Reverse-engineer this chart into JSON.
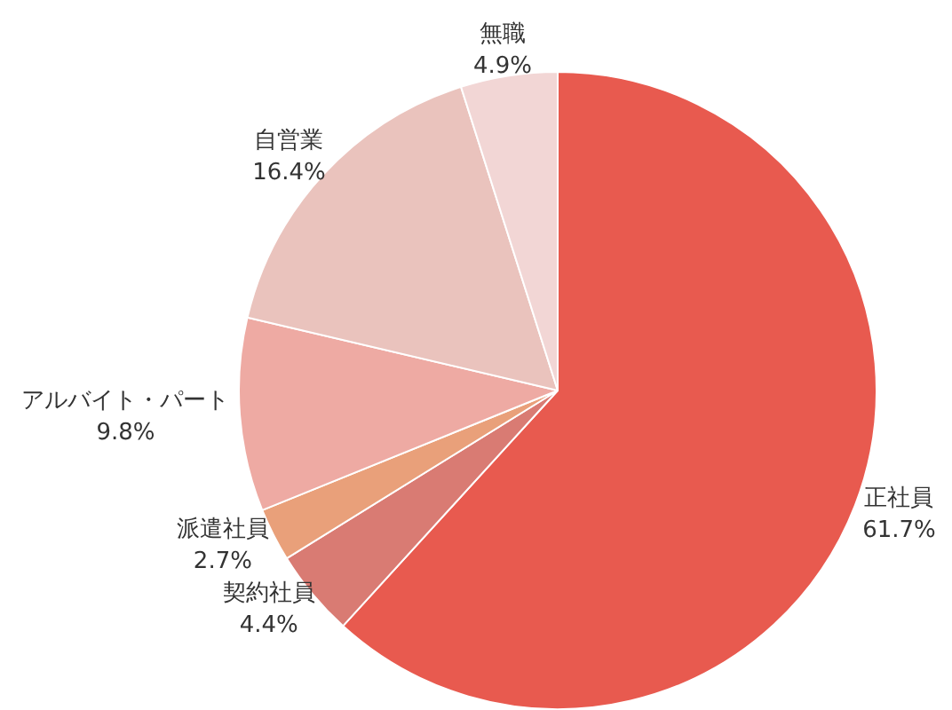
{
  "chart_data": {
    "type": "pie",
    "categories": [
      "正社員",
      "契約社員",
      "派遣社員",
      "アルバイト・パート",
      "自営業",
      "無職"
    ],
    "values": [
      61.7,
      4.4,
      2.7,
      9.8,
      16.4,
      4.9
    ],
    "value_labels": [
      "61.7%",
      "4.4%",
      "2.7%",
      "9.8%",
      "16.4%",
      "4.9%"
    ],
    "colors": [
      "#e85a4f",
      "#d97b73",
      "#e9a07a",
      "#eeaaa3",
      "#eac3bd",
      "#f2d6d5"
    ]
  }
}
